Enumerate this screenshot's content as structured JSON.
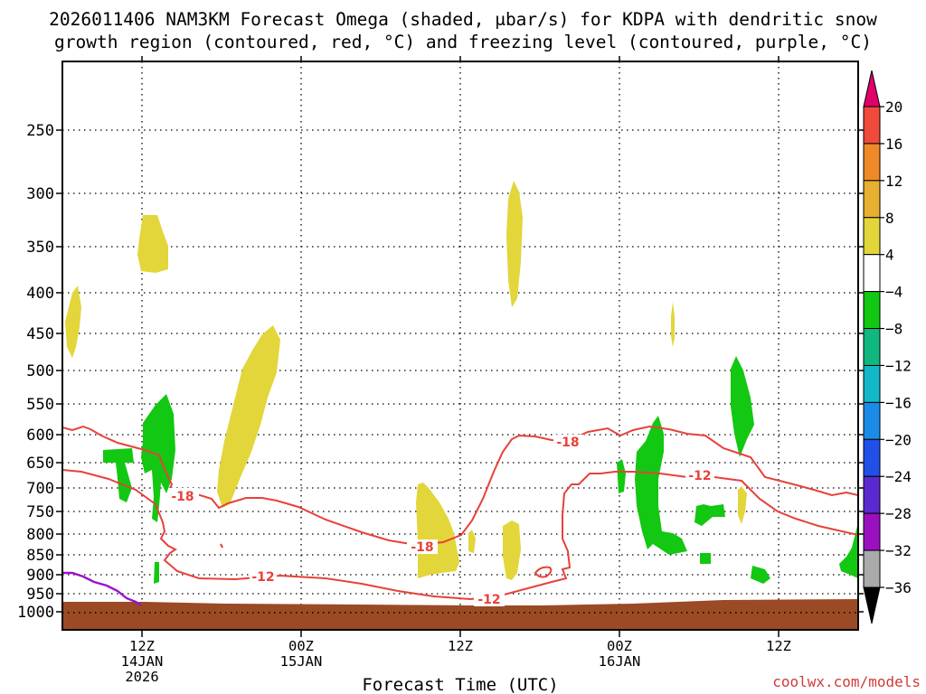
{
  "title_line1": "2026011406 NAM3KM Forecast Omega (shaded, μbar/s) for KDPA with dendritic snow",
  "title_line2": "growth region (contoured, red, °C) and freezing level (contoured, purple, °C)",
  "xlabel": "Forecast Time (UTC)",
  "credit": "coolwx.com/models",
  "chart_data": {
    "type": "contour",
    "x_axis": {
      "label": "Forecast Time (UTC)",
      "ticks": [
        {
          "hour": 6,
          "lines": [
            "12Z",
            "14JAN",
            "2026"
          ]
        },
        {
          "hour": 18,
          "lines": [
            "00Z",
            "15JAN"
          ]
        },
        {
          "hour": 30,
          "lines": [
            "12Z"
          ]
        },
        {
          "hour": 42,
          "lines": [
            "00Z",
            "16JAN"
          ]
        },
        {
          "hour": 54,
          "lines": [
            "12Z"
          ]
        }
      ],
      "range_hours_from_run": [
        0,
        60
      ]
    },
    "y_axis": {
      "label": "",
      "scale": "pressure (hPa, decreasing upward)",
      "ticks": [
        250,
        300,
        350,
        400,
        450,
        500,
        550,
        600,
        650,
        700,
        750,
        800,
        850,
        900,
        950,
        1000
      ],
      "gridlines": "dotted"
    },
    "colorbar": {
      "units": "μbar/s",
      "levels": [
        20,
        16,
        12,
        8,
        4,
        -4,
        -8,
        -12,
        -16,
        -20,
        -24,
        -28,
        -32,
        -36
      ],
      "colors": [
        "#e0006a",
        "#f04a3a",
        "#f08a28",
        "#e8b030",
        "#e2d63a",
        "#ffffff",
        "#12c812",
        "#10b880",
        "#12b8c8",
        "#1a8ce8",
        "#2050e8",
        "#5a2ad0",
        "#9a10c0",
        "#aaaaaa",
        "#000000"
      ]
    },
    "contours": [
      {
        "name": "dendritic growth region",
        "color": "#e8413a",
        "labels": [
          -18,
          -12,
          -18,
          -18,
          -12,
          -12
        ]
      },
      {
        "name": "freezing level",
        "color": "#9a10d0"
      }
    ],
    "surface_fill_color": "#9b4a25"
  }
}
